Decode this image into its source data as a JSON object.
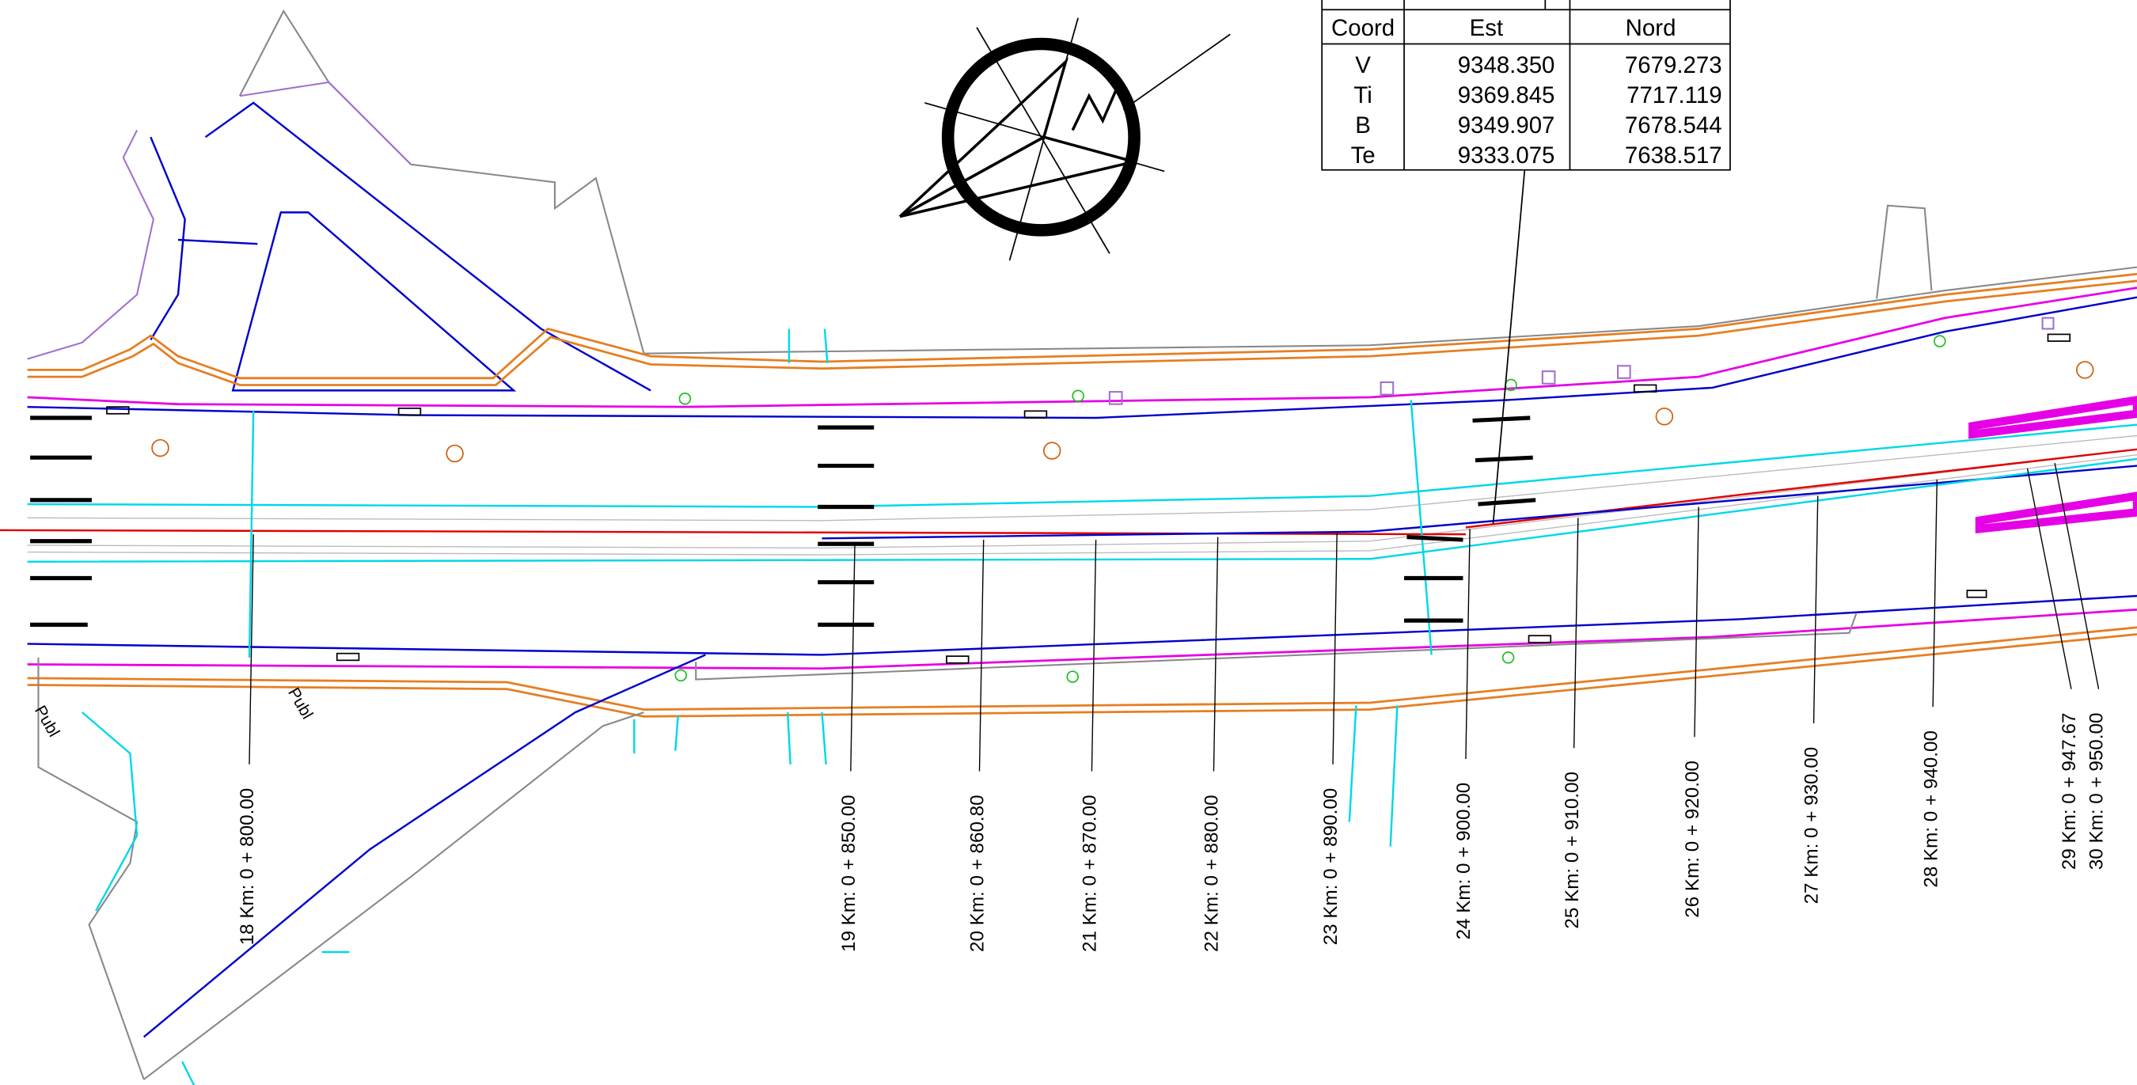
{
  "table": {
    "header": [
      "Coord",
      "Est",
      "Nord"
    ],
    "rows": [
      [
        "V",
        "9348.350",
        "7679.273"
      ],
      [
        "Ti",
        "9369.845",
        "7717.119"
      ],
      [
        "B",
        "9349.907",
        "7678.544"
      ],
      [
        "Te",
        "9333.075",
        "7638.517"
      ]
    ]
  },
  "stations": [
    "18 Km: 0 + 800.00",
    "19 Km: 0 + 850.00",
    "20 Km: 0 + 860.80",
    "21 Km: 0 + 870.00",
    "22 Km: 0 + 880.00",
    "23 Km: 0 + 890.00",
    "24 Km: 0 + 900.00",
    "25 Km: 0 + 910.00",
    "26 Km: 0 + 920.00",
    "27 Km: 0 + 930.00",
    "28 Km: 0 + 940.00",
    "29 Km: 0 + 947.67",
    "30 Km: 0 + 950.00"
  ],
  "notes": [
    "Publ",
    "Publ"
  ]
}
